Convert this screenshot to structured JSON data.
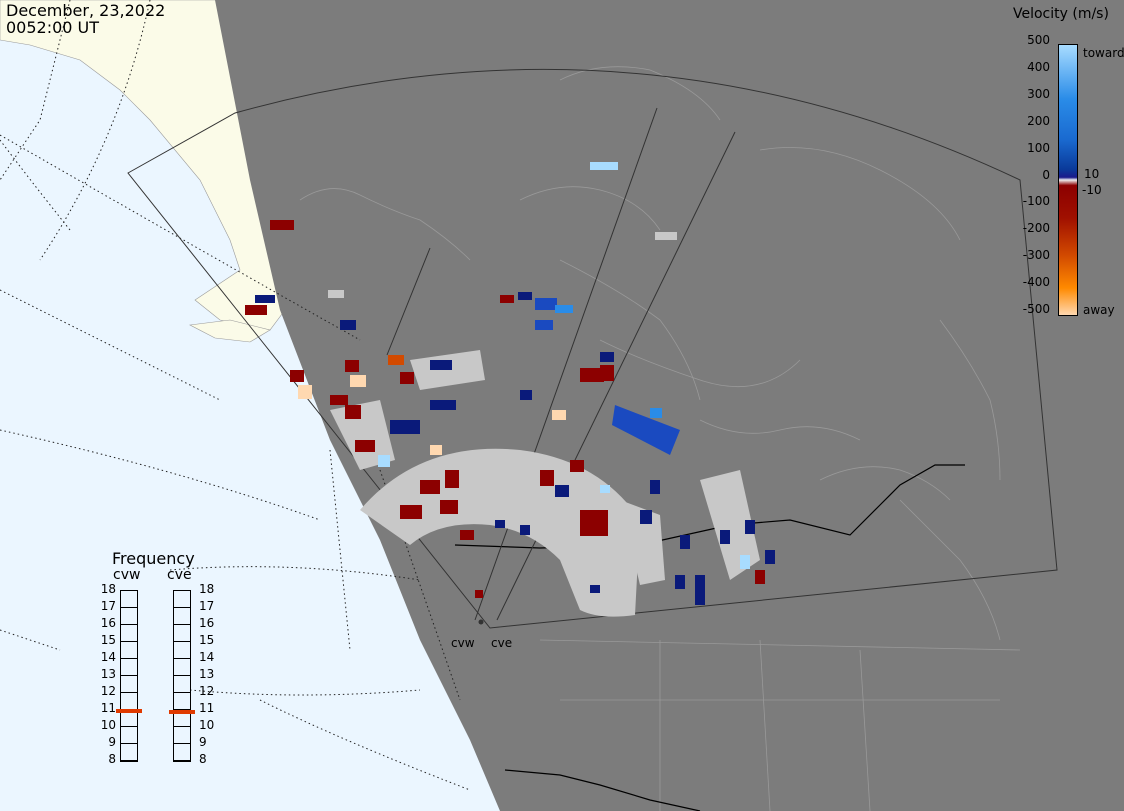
{
  "timestamp": {
    "date": "December, 23,2022",
    "time": "0052:00 UT"
  },
  "colorbar": {
    "title": "Velocity (m/s)",
    "ticks": [
      "500",
      "400",
      "300",
      "200",
      "100",
      "0",
      "-100",
      "-200",
      "-300",
      "-400",
      "-500"
    ],
    "inner_labels": [
      "10",
      "-10"
    ],
    "toward_label": "toward",
    "away_label": "away",
    "colors": [
      "#ffd8b0",
      "#ff8a00",
      "#d24a00",
      "#8c0000",
      "#1a1a8c",
      "#0a3a9a",
      "#1a6ad0",
      "#2a8ce8",
      "#a8dcff"
    ]
  },
  "frequency": {
    "title": "Frequency",
    "radars": [
      {
        "name": "cvw",
        "selected_mhz": 10.9
      },
      {
        "name": "cve",
        "selected_mhz": 10.8
      }
    ],
    "scale": [
      "18",
      "17",
      "16",
      "15",
      "14",
      "13",
      "12",
      "11",
      "10",
      "9",
      "8"
    ],
    "marker_color": "#e03a00"
  },
  "radar_labels": [
    "cvw",
    "cve"
  ],
  "colors": {
    "ocean": "#ebf6ff",
    "night": "#7c7c7c",
    "day_land": "#fbfbe8",
    "ground_scatter": "#c8c8c8"
  }
}
